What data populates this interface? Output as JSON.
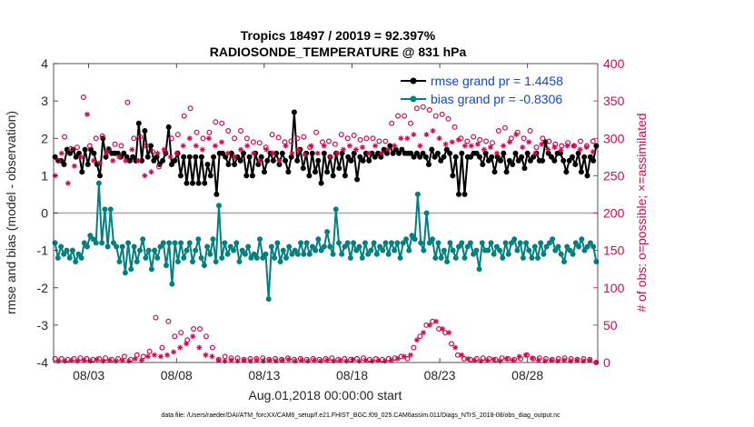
{
  "chart_data": {
    "type": "line",
    "title": "Tropics 18497 / 20019 = 92.397%",
    "subtitle": "RADIOSONDE_TEMPERATURE @ 831 hPa",
    "xlabel": "Aug.01,2018 00:00:00 start",
    "ylabel": "rmse and bias (model - observation)",
    "ylabel_right": "# of obs: o=possible; ×=assimilated",
    "footnote": "data file: /Users/raeder/DAI/ATM_forcXX/CAM6_setup/f.e21.FHIST_BGC.f09_025.CAM6assim.011/Diags_NTrS_2018-08/obs_diag_output.nc",
    "xlim": [
      1.0,
      32.0
    ],
    "ylim": [
      -4,
      4
    ],
    "ylim_right": [
      0,
      400
    ],
    "x_ticks": [
      3,
      8,
      13,
      18,
      23,
      28
    ],
    "x_tick_labels": [
      "08/03",
      "08/08",
      "08/13",
      "08/18",
      "08/23",
      "08/28"
    ],
    "y_ticks": [
      -4,
      -3,
      -2,
      -1,
      0,
      1,
      2,
      3,
      4
    ],
    "y_tick_labels": [
      "-4",
      "-3",
      "-2",
      "-1",
      "0",
      "1",
      "2",
      "3",
      "4"
    ],
    "y_ticks_right": [
      0,
      50,
      100,
      150,
      200,
      250,
      300,
      350,
      400
    ],
    "y_tick_labels_right": [
      "0",
      "50",
      "100",
      "150",
      "200",
      "250",
      "300",
      "350",
      "400"
    ],
    "colors": {
      "rmse": "#000000",
      "bias": "#00807f",
      "obs": "#c8104c",
      "legend_text": "#0f49cf",
      "zero_line": "#a8a8a8"
    },
    "legend_position": "top-right",
    "series": [
      {
        "name": "rmse grand pr = 1.4458",
        "color": "#000000",
        "axis": "left",
        "values": [
          1.5,
          1.4,
          1.4,
          1.3,
          1.7,
          1.6,
          1.7,
          1.5,
          1.6,
          1.1,
          1.7,
          1.3,
          1.7,
          1.6,
          1.3,
          1.0,
          2.0,
          1.5,
          1.7,
          1.6,
          1.6,
          1.6,
          1.5,
          1.6,
          1.5,
          1.4,
          1.5,
          1.4,
          2.4,
          1.4,
          2.2,
          1.5,
          1.8,
          1.4,
          1.5,
          1.3,
          1.4,
          1.6,
          2.3,
          1.3,
          1.4,
          1.6,
          1.0,
          1.5,
          0.8,
          1.5,
          0.8,
          1.5,
          0.8,
          1.5,
          0.8,
          1.3,
          1.0,
          1.5,
          0.5,
          1.6,
          1.6,
          1.5,
          1.3,
          1.6,
          1.3,
          1.5,
          1.4,
          1.6,
          1.0,
          1.5,
          1.0,
          1.6,
          1.3,
          1.5,
          1.1,
          1.4,
          1.6,
          1.4,
          1.6,
          1.3,
          1.6,
          1.4,
          1.1,
          1.5,
          2.7,
          1.4,
          1.7,
          1.2,
          1.6,
          1.0,
          1.6,
          1.1,
          1.4,
          0.8,
          1.6,
          1.1,
          1.5,
          1.0,
          1.6,
          1.2,
          1.6,
          1.0,
          1.5,
          1.4,
          1.6,
          0.9,
          1.5,
          1.4,
          1.6,
          1.4,
          1.6,
          1.5,
          1.6,
          1.5,
          1.7,
          1.6,
          1.8,
          1.6,
          1.7,
          1.6,
          1.7,
          1.6,
          1.6,
          1.6,
          1.5,
          1.6,
          1.5,
          1.6,
          1.5,
          1.3,
          1.7,
          1.5,
          1.6,
          1.4,
          1.5,
          1.7,
          1.6,
          1.0,
          1.5,
          0.5,
          1.6,
          0.5,
          1.5,
          1.5,
          1.6,
          1.6,
          1.5,
          1.3,
          1.6,
          1.4,
          1.5,
          1.1,
          1.5,
          1.4,
          1.6,
          1.1,
          1.4,
          1.3,
          1.6,
          1.4,
          1.5,
          1.2,
          1.6,
          1.4,
          1.5,
          1.6,
          1.4,
          1.4,
          1.9,
          1.6,
          1.5,
          1.4,
          1.6,
          1.6,
          1.4,
          1.1,
          1.4,
          1.5,
          1.3,
          1.6,
          1.1,
          1.5,
          1.0,
          1.5,
          1.4,
          1.8
        ]
      },
      {
        "name": "bias grand pr = -0.8306",
        "color": "#00807f",
        "axis": "left",
        "values": [
          -0.8,
          -1.2,
          -0.9,
          -1.1,
          -1.0,
          -1.2,
          -1.0,
          -1.3,
          -1.1,
          -1.2,
          -0.8,
          -0.9,
          -0.6,
          -0.7,
          -0.8,
          0.8,
          -0.8,
          0.1,
          -0.9,
          0.1,
          -0.8,
          -0.9,
          -1.3,
          -0.9,
          -1.6,
          -0.8,
          -1.5,
          -0.9,
          -1.3,
          -1.0,
          -0.7,
          -1.2,
          -1.0,
          -1.5,
          -1.0,
          -1.2,
          -0.9,
          -0.8,
          -1.4,
          -0.8,
          -1.9,
          -0.8,
          -1.3,
          -0.8,
          -1.2,
          -1.0,
          -0.8,
          -1.3,
          -1.0,
          -0.7,
          -1.2,
          -1.4,
          -0.9,
          -1.1,
          -0.7,
          -1.3,
          0.2,
          -1.2,
          -0.8,
          -1.1,
          -0.9,
          -1.0,
          -0.8,
          -1.3,
          -1.0,
          -1.1,
          -0.9,
          -1.2,
          -1.1,
          -1.2,
          -0.7,
          -1.2,
          -1.1,
          -2.3,
          -0.9,
          -1.2,
          -0.8,
          -1.3,
          -1.0,
          -1.2,
          -0.9,
          -1.1,
          -1.0,
          -1.1,
          -0.8,
          -1.1,
          -0.8,
          -1.1,
          -0.9,
          -1.0,
          -0.7,
          -1.0,
          -0.9,
          -0.5,
          -0.9,
          -1.1,
          0.1,
          -0.8,
          -1.1,
          -0.9,
          -0.8,
          -1.2,
          -0.8,
          -1.0,
          -0.9,
          -1.2,
          -0.8,
          -1.1,
          -1.0,
          -0.8,
          -1.1,
          -0.9,
          -1.0,
          -0.8,
          -1.1,
          -0.8,
          -1.0,
          -0.8,
          -1.2,
          -0.8,
          -0.7,
          -1.0,
          -0.6,
          -0.7,
          0.5,
          -0.8,
          -1.0,
          0.0,
          -0.8,
          -0.7,
          -1.2,
          -0.8,
          -1.2,
          -1.0,
          -1.3,
          -0.8,
          -1.0,
          -1.2,
          -0.9,
          -0.8,
          -1.2,
          -0.9,
          -0.8,
          -1.1,
          -1.0,
          -1.5,
          -0.8,
          -1.0,
          -1.0,
          -0.8,
          -1.1,
          -0.9,
          -1.0,
          -1.2,
          -0.8,
          -1.1,
          -0.8,
          -0.7,
          -1.0,
          -0.8,
          -1.2,
          -0.8,
          -1.0,
          -1.2,
          -0.9,
          -1.2,
          -0.8,
          -1.1,
          -0.9,
          -0.8,
          -0.7,
          -1.0,
          -0.9,
          -1.1,
          -1.3,
          -0.9,
          -1.0,
          -1.1,
          -0.8,
          -0.9,
          -0.7,
          -1.0,
          -0.9,
          -0.8,
          -0.9,
          -1.3
        ]
      },
      {
        "name": "possible obs",
        "color": "#c8104c",
        "axis": "right",
        "marker": "o",
        "values": [
          5,
          270,
          5,
          302,
          4,
          286,
          5,
          288,
          6,
          355,
          5,
          290,
          4,
          300,
          5,
          303,
          6,
          286,
          4,
          292,
          5,
          290,
          8,
          348,
          4,
          300,
          10,
          302,
          8,
          290,
          15,
          282,
          60,
          262,
          20,
          282,
          55,
          300,
          35,
          305,
          40,
          330,
          30,
          340,
          45,
          308,
          45,
          300,
          35,
          308,
          20,
          322,
          4,
          320,
          8,
          310,
          6,
          300,
          6,
          310,
          4,
          300,
          5,
          295,
          5,
          294,
          6,
          288,
          4,
          305,
          5,
          301,
          4,
          295,
          6,
          296,
          4,
          300,
          5,
          302,
          4,
          288,
          5,
          308,
          4,
          295,
          5,
          296,
          6,
          292,
          4,
          305,
          5,
          300,
          4,
          304,
          5,
          298,
          6,
          300,
          4,
          300,
          5,
          296,
          4,
          296,
          5,
          320,
          6,
          330,
          8,
          330,
          5,
          320,
          20,
          340,
          35,
          342,
          50,
          338,
          55,
          330,
          45,
          332,
          40,
          326,
          25,
          315,
          10,
          300,
          5,
          296,
          4,
          302,
          5,
          298,
          6,
          296,
          5,
          294,
          4,
          310,
          6,
          314,
          5,
          300,
          4,
          308,
          5,
          300,
          10,
          310,
          5,
          288,
          6,
          300,
          5,
          296,
          4,
          292,
          5,
          290,
          6,
          294,
          5,
          290,
          4,
          296,
          5,
          290,
          4,
          296,
          0
        ]
      },
      {
        "name": "assimilated obs",
        "color": "#c8104c",
        "axis": "right",
        "marker": "x",
        "values": [
          250,
          2,
          280,
          2,
          240,
          3,
          263,
          2,
          275,
          3,
          332,
          2,
          270,
          4,
          267,
          2,
          280,
          3,
          270,
          2,
          275,
          3,
          270,
          2,
          285,
          5,
          270,
          3,
          250,
          8,
          255,
          10,
          280,
          8,
          285,
          10,
          275,
          14,
          280,
          20,
          290,
          25,
          300,
          35,
          290,
          20,
          285,
          10,
          300,
          8,
          290,
          3,
          295,
          2,
          280,
          3,
          275,
          2,
          285,
          3,
          290,
          2,
          280,
          3,
          270,
          2,
          285,
          3,
          280,
          2,
          270,
          3,
          290,
          4,
          280,
          2,
          285,
          3,
          278,
          2,
          290,
          3,
          280,
          2,
          290,
          3,
          275,
          2,
          280,
          3,
          285,
          2,
          290,
          4,
          285,
          2,
          288,
          3,
          280,
          2,
          290,
          3,
          280,
          2,
          285,
          3,
          290,
          5,
          300,
          8,
          300,
          10,
          305,
          30,
          290,
          40,
          305,
          50,
          310,
          55,
          300,
          45,
          292,
          40,
          295,
          20,
          298,
          10,
          290,
          5,
          290,
          3,
          292,
          2,
          285,
          3,
          288,
          4,
          280,
          2,
          290,
          5,
          295,
          3,
          305,
          8,
          288,
          10,
          295,
          6,
          280,
          3,
          292,
          2,
          285,
          3,
          288,
          2,
          284,
          3,
          290,
          2,
          290,
          3,
          285,
          2,
          288,
          3,
          282,
          0
        ]
      }
    ]
  }
}
